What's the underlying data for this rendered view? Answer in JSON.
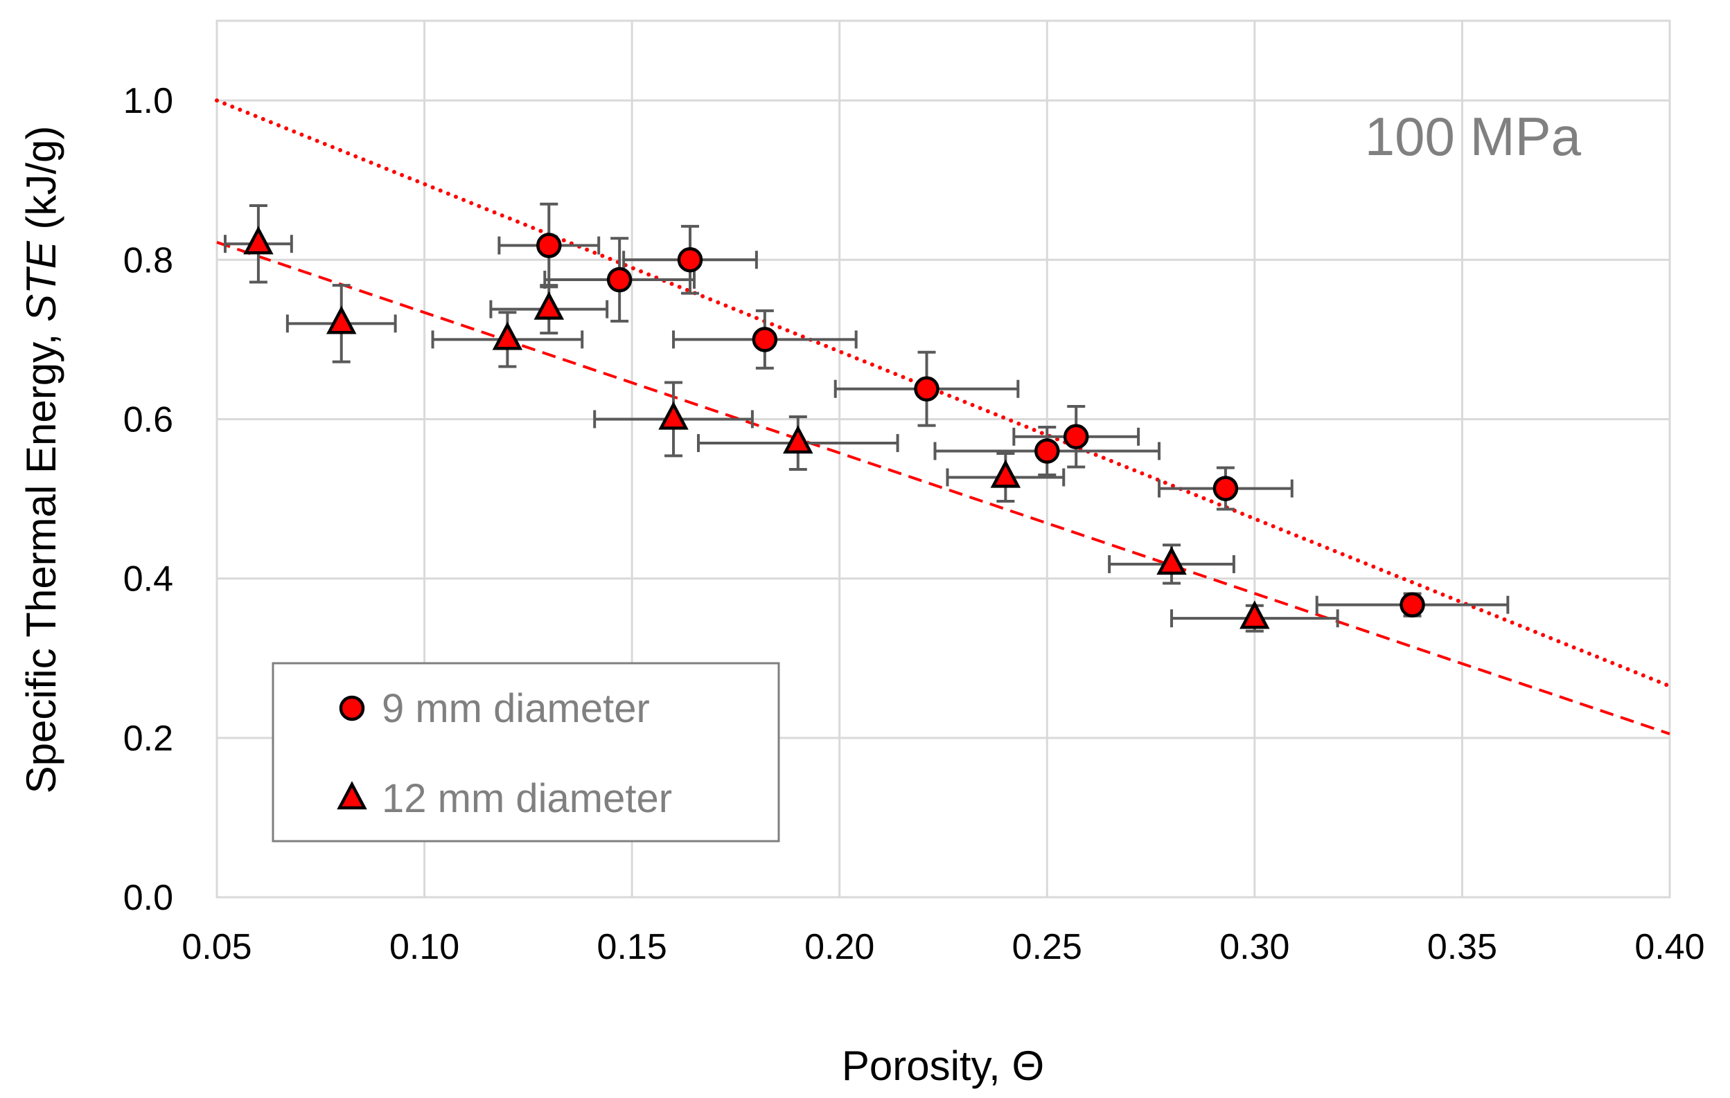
{
  "chart_data": {
    "type": "scatter",
    "xlabel_prefix": "Porosity, ",
    "xlabel_symbol": "Θ",
    "ylabel_prefix": "Specific Thermal Energy, ",
    "ylabel_italic": "STE",
    "ylabel_suffix": " (kJ/g)",
    "xlim": [
      0.05,
      0.4
    ],
    "ylim": [
      0.0,
      1.1
    ],
    "x_ticks": [
      0.05,
      0.1,
      0.15,
      0.2,
      0.25,
      0.3,
      0.35,
      0.4
    ],
    "x_tick_labels": [
      "0.05",
      "0.10",
      "0.15",
      "0.20",
      "0.25",
      "0.30",
      "0.35",
      "0.40"
    ],
    "y_ticks": [
      0.0,
      0.2,
      0.4,
      0.6,
      0.8,
      1.0
    ],
    "y_tick_labels": [
      "0.0",
      "0.2",
      "0.4",
      "0.6",
      "0.8",
      "1.0"
    ],
    "grid": true,
    "annotation": "100 MPa",
    "legend_position": "bottom-left",
    "colors": {
      "marker_fill": "#ff0000",
      "marker_stroke": "#000000",
      "errorbar": "#595959",
      "grid": "#d9d9d9",
      "trendline": "#ff0000"
    },
    "series": [
      {
        "name": "9 mm diameter",
        "marker": "circle",
        "trendline": {
          "style": "dotted",
          "x": [
            0.05,
            0.4
          ],
          "y": [
            1.0,
            0.265
          ]
        },
        "points": [
          {
            "x": 0.13,
            "y": 0.818,
            "xerr": 0.012,
            "yerr": 0.052
          },
          {
            "x": 0.147,
            "y": 0.775,
            "xerr": 0.018,
            "yerr": 0.052
          },
          {
            "x": 0.164,
            "y": 0.8,
            "xerr": 0.016,
            "yerr": 0.042
          },
          {
            "x": 0.182,
            "y": 0.7,
            "xerr": 0.022,
            "yerr": 0.036
          },
          {
            "x": 0.221,
            "y": 0.638,
            "xerr": 0.022,
            "yerr": 0.046
          },
          {
            "x": 0.25,
            "y": 0.56,
            "xerr": 0.027,
            "yerr": 0.03
          },
          {
            "x": 0.257,
            "y": 0.578,
            "xerr": 0.015,
            "yerr": 0.038
          },
          {
            "x": 0.293,
            "y": 0.513,
            "xerr": 0.016,
            "yerr": 0.026
          },
          {
            "x": 0.338,
            "y": 0.367,
            "xerr": 0.023,
            "yerr": 0.014
          }
        ]
      },
      {
        "name": "12 mm diameter",
        "marker": "triangle",
        "trendline": {
          "style": "dashed",
          "x": [
            0.05,
            0.4
          ],
          "y": [
            0.822,
            0.205
          ]
        },
        "points": [
          {
            "x": 0.06,
            "y": 0.82,
            "xerr": 0.008,
            "yerr": 0.048
          },
          {
            "x": 0.08,
            "y": 0.72,
            "xerr": 0.013,
            "yerr": 0.048
          },
          {
            "x": 0.12,
            "y": 0.7,
            "xerr": 0.018,
            "yerr": 0.034
          },
          {
            "x": 0.13,
            "y": 0.738,
            "xerr": 0.014,
            "yerr": 0.03
          },
          {
            "x": 0.16,
            "y": 0.6,
            "xerr": 0.019,
            "yerr": 0.046
          },
          {
            "x": 0.19,
            "y": 0.57,
            "xerr": 0.024,
            "yerr": 0.033
          },
          {
            "x": 0.24,
            "y": 0.527,
            "xerr": 0.014,
            "yerr": 0.03
          },
          {
            "x": 0.28,
            "y": 0.418,
            "xerr": 0.015,
            "yerr": 0.024
          },
          {
            "x": 0.3,
            "y": 0.35,
            "xerr": 0.02,
            "yerr": 0.016
          }
        ]
      }
    ]
  }
}
